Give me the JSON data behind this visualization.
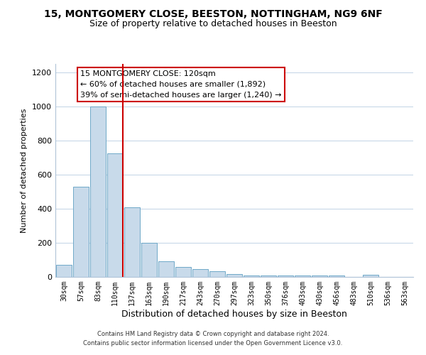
{
  "title": "15, MONTGOMERY CLOSE, BEESTON, NOTTINGHAM, NG9 6NF",
  "subtitle": "Size of property relative to detached houses in Beeston",
  "xlabel": "Distribution of detached houses by size in Beeston",
  "ylabel": "Number of detached properties",
  "bar_labels": [
    "30sqm",
    "57sqm",
    "83sqm",
    "110sqm",
    "137sqm",
    "163sqm",
    "190sqm",
    "217sqm",
    "243sqm",
    "270sqm",
    "297sqm",
    "323sqm",
    "350sqm",
    "376sqm",
    "403sqm",
    "430sqm",
    "456sqm",
    "483sqm",
    "510sqm",
    "536sqm",
    "563sqm"
  ],
  "bar_values": [
    70,
    530,
    1000,
    725,
    410,
    198,
    90,
    60,
    45,
    33,
    18,
    8,
    8,
    8,
    8,
    8,
    8,
    0,
    12,
    0,
    0
  ],
  "bar_color": "#c8daea",
  "bar_edge_color": "#6fa8c8",
  "vline_color": "#cc0000",
  "annotation_title": "15 MONTGOMERY CLOSE: 120sqm",
  "annotation_line1": "← 60% of detached houses are smaller (1,892)",
  "annotation_line2": "39% of semi-detached houses are larger (1,240) →",
  "annotation_box_color": "#ffffff",
  "annotation_box_edge": "#cc0000",
  "ylim": [
    0,
    1250
  ],
  "yticks": [
    0,
    200,
    400,
    600,
    800,
    1000,
    1200
  ],
  "footer_line1": "Contains HM Land Registry data © Crown copyright and database right 2024.",
  "footer_line2": "Contains public sector information licensed under the Open Government Licence v3.0.",
  "bg_color": "#ffffff",
  "grid_color": "#c8d8e8",
  "title_fontsize": 10,
  "subtitle_fontsize": 9,
  "xlabel_fontsize": 9,
  "ylabel_fontsize": 8,
  "tick_fontsize": 7,
  "footer_fontsize": 6,
  "ann_fontsize": 8
}
